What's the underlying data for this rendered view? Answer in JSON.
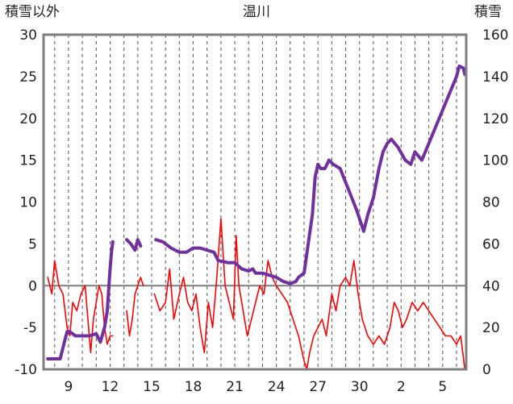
{
  "chart_data": {
    "type": "line",
    "title": "温川",
    "ylabel_left": "積雪以外",
    "ylabel_right": "積雪",
    "ylim_left": [
      -10,
      30
    ],
    "ylim_right": [
      0,
      160
    ],
    "yticks_left": [
      -10,
      -5,
      0,
      5,
      10,
      15,
      20,
      25,
      30
    ],
    "yticks_right": [
      0,
      20,
      40,
      60,
      80,
      100,
      120,
      140,
      160
    ],
    "x_labels": [
      "9",
      "12",
      "15",
      "18",
      "21",
      "24",
      "27",
      "30",
      "2",
      "5"
    ],
    "grid": "vertical dashed",
    "colors": {
      "snow": "#7030a0",
      "other": "#ff0000",
      "zero_line": "#7f7f7f",
      "frame": "#7f7f7f"
    },
    "series": [
      {
        "name": "積雪",
        "axis": "right",
        "points": [
          [
            7.5,
            5
          ],
          [
            8.4,
            5
          ],
          [
            8.7,
            13
          ],
          [
            8.9,
            18
          ],
          [
            9.1,
            18
          ],
          [
            9.5,
            16
          ],
          [
            10,
            16
          ],
          [
            10.5,
            16
          ],
          [
            11,
            17
          ],
          [
            11.3,
            13
          ],
          [
            11.6,
            20
          ],
          [
            11.8,
            28
          ],
          [
            11.9,
            38
          ],
          [
            12.0,
            48
          ],
          [
            12.1,
            56
          ],
          [
            12.2,
            61
          ],
          null,
          [
            13.2,
            62
          ],
          [
            13.5,
            60
          ],
          [
            13.8,
            57
          ],
          [
            14,
            62
          ],
          [
            14.2,
            59
          ],
          null,
          [
            15.3,
            62
          ],
          [
            15.8,
            61
          ],
          [
            16.4,
            58
          ],
          [
            17,
            56
          ],
          [
            17.5,
            56
          ],
          [
            18,
            58
          ],
          [
            18.5,
            58
          ],
          [
            19,
            57
          ],
          [
            19.5,
            56
          ],
          [
            19.8,
            52
          ],
          [
            20.5,
            51
          ],
          [
            21,
            51
          ],
          [
            21.5,
            48
          ],
          [
            22,
            47
          ],
          [
            22.3,
            48
          ],
          [
            22.5,
            46
          ],
          [
            23,
            46
          ],
          [
            23.5,
            45
          ],
          [
            24,
            44
          ],
          [
            24.5,
            42
          ],
          [
            25,
            41
          ],
          [
            25.4,
            42
          ],
          [
            25.6,
            44
          ],
          [
            26,
            46
          ],
          [
            26.3,
            60
          ],
          [
            26.6,
            74
          ],
          [
            26.8,
            92
          ],
          [
            27.0,
            98
          ],
          [
            27.2,
            96
          ],
          [
            27.5,
            96
          ],
          [
            27.8,
            100
          ],
          [
            28.1,
            98
          ],
          [
            28.6,
            96
          ],
          [
            29.2,
            86
          ],
          [
            29.8,
            76
          ],
          [
            30.1,
            70
          ],
          [
            30.3,
            66
          ],
          [
            30.6,
            74
          ],
          [
            31,
            82
          ],
          [
            31.4,
            96
          ],
          [
            31.7,
            104
          ],
          [
            32,
            108
          ],
          [
            32.3,
            110
          ],
          [
            32.8,
            106
          ],
          [
            33.3,
            100
          ],
          [
            33.7,
            98
          ],
          [
            34,
            104
          ],
          [
            34.5,
            100
          ],
          [
            35,
            108
          ],
          [
            35.5,
            116
          ],
          [
            36,
            124
          ],
          [
            36.5,
            132
          ],
          [
            37,
            140
          ],
          [
            37.2,
            145
          ],
          [
            37.5,
            144
          ],
          [
            37.6,
            141
          ]
        ]
      },
      {
        "name": "積雪以外",
        "axis": "left",
        "points": [
          [
            7.5,
            1
          ],
          [
            7.8,
            -1
          ],
          [
            8,
            3
          ],
          [
            8.3,
            0
          ],
          [
            8.6,
            -1
          ],
          [
            8.9,
            -5
          ],
          [
            9.1,
            -6
          ],
          [
            9.3,
            -2
          ],
          [
            9.6,
            -3
          ],
          [
            9.9,
            -1
          ],
          [
            10.2,
            0
          ],
          [
            10.4,
            -4
          ],
          [
            10.6,
            -8
          ],
          [
            10.8,
            -4
          ],
          [
            11,
            -2
          ],
          [
            11.2,
            0
          ],
          [
            11.4,
            -1
          ],
          [
            11.6,
            -5
          ],
          [
            11.8,
            -7
          ],
          [
            12.0,
            -6
          ],
          [
            12.2,
            -6
          ],
          null,
          [
            13.2,
            -3
          ],
          [
            13.4,
            -6
          ],
          [
            13.6,
            -4
          ],
          [
            13.8,
            -1
          ],
          [
            14.0,
            0
          ],
          [
            14.2,
            1
          ],
          [
            14.4,
            0
          ],
          null,
          [
            15.2,
            -1
          ],
          [
            15.6,
            -3
          ],
          [
            16,
            -2
          ],
          [
            16.3,
            2
          ],
          [
            16.6,
            -4
          ],
          [
            17,
            -1
          ],
          [
            17.3,
            1
          ],
          [
            17.6,
            -2
          ],
          [
            17.9,
            -3
          ],
          [
            18.2,
            -1
          ],
          [
            18.5,
            -5
          ],
          [
            18.8,
            -8
          ],
          [
            19.1,
            -2
          ],
          [
            19.4,
            -5
          ],
          [
            19.7,
            1
          ],
          [
            20,
            8
          ],
          [
            20.3,
            0
          ],
          [
            20.6,
            -2
          ],
          [
            20.9,
            -4
          ],
          [
            21.1,
            6
          ],
          [
            21.3,
            0
          ],
          [
            21.6,
            -3
          ],
          [
            21.9,
            -6
          ],
          [
            22.2,
            -4
          ],
          [
            22.5,
            -2
          ],
          [
            22.8,
            0
          ],
          [
            23.1,
            -1
          ],
          [
            23.4,
            3
          ],
          [
            23.7,
            1
          ],
          [
            24,
            0
          ],
          [
            24.4,
            -1
          ],
          [
            24.8,
            -2
          ],
          [
            25.2,
            -4
          ],
          [
            25.6,
            -6
          ],
          [
            26,
            -9
          ],
          [
            26.2,
            -10
          ],
          [
            26.4,
            -8
          ],
          [
            26.7,
            -6
          ],
          [
            27,
            -5
          ],
          [
            27.3,
            -4
          ],
          [
            27.6,
            -6
          ],
          [
            28,
            -1
          ],
          [
            28.3,
            -3
          ],
          [
            28.6,
            0
          ],
          [
            29,
            1
          ],
          [
            29.3,
            0
          ],
          [
            29.6,
            3
          ],
          [
            29.9,
            -1
          ],
          [
            30.2,
            -4
          ],
          [
            30.6,
            -6
          ],
          [
            31,
            -7
          ],
          [
            31.4,
            -6
          ],
          [
            31.8,
            -7
          ],
          [
            32.2,
            -5
          ],
          [
            32.5,
            -2
          ],
          [
            32.8,
            -3
          ],
          [
            33.1,
            -5
          ],
          [
            33.4,
            -4
          ],
          [
            33.8,
            -2
          ],
          [
            34.2,
            -3
          ],
          [
            34.6,
            -2
          ],
          [
            35,
            -3
          ],
          [
            35.4,
            -4
          ],
          [
            35.8,
            -5
          ],
          [
            36.2,
            -6
          ],
          [
            36.6,
            -6
          ],
          [
            37,
            -7
          ],
          [
            37.3,
            -6
          ],
          [
            37.6,
            -10
          ]
        ]
      }
    ]
  }
}
